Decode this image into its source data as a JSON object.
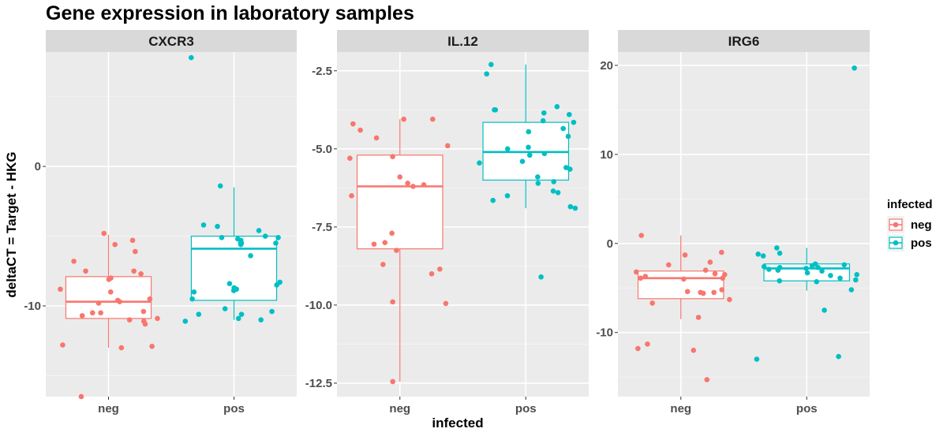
{
  "chart_data": {
    "type": "box",
    "title": "Gene expression in laboratory samples",
    "xlabel": "infected",
    "ylabel": "deltaCT = Target - HKG",
    "categories": [
      "neg",
      "pos"
    ],
    "legend": {
      "title": "infected",
      "position": "right",
      "entries": [
        {
          "name": "neg",
          "color": "#F8766D"
        },
        {
          "name": "pos",
          "color": "#00BFC4"
        }
      ]
    },
    "panels": [
      {
        "strip": "CXCR3",
        "ylim": [
          -16.5,
          8.2
        ],
        "yticks": [
          -10,
          0
        ],
        "ytick_labels": [
          "-10",
          "0"
        ],
        "boxes": [
          {
            "group": "neg",
            "lower_whisker": -13.0,
            "q1": -10.9,
            "median": -9.7,
            "q3": -7.9,
            "upper_whisker": -4.9
          },
          {
            "group": "pos",
            "lower_whisker": -11.0,
            "q1": -9.6,
            "median": -5.9,
            "q3": -5.0,
            "upper_whisker": -1.5
          }
        ],
        "points": {
          "neg": [
            -5.3,
            -5.6,
            -4.8,
            -7.5,
            -7.7,
            -7.5,
            -8.1,
            -8.0,
            -9.0,
            -8.8,
            -9.6,
            -9.7,
            -9.8,
            -10.4,
            -10.5,
            -10.5,
            -10.7,
            -10.9,
            -11.0,
            -11.3,
            -11.1,
            -12.8,
            -13.0,
            -12.9,
            -16.5,
            -6.1,
            -6.8,
            -9.5
          ],
          "pos": [
            7.8,
            -1.4,
            -4.3,
            -5.1,
            -5.2,
            -5.3,
            -5.5,
            -5.5,
            -5.6,
            -5.1,
            -5.5,
            -5.0,
            -4.2,
            -4.6,
            -6.4,
            -8.3,
            -8.4,
            -8.5,
            -8.7,
            -8.8,
            -8.9,
            -9.0,
            -9.5,
            -10.2,
            -10.4,
            -10.6,
            -10.6,
            -10.9,
            -11.0,
            -11.1
          ]
        }
      },
      {
        "strip": "IL.12",
        "ylim": [
          -12.5,
          -2.3
        ],
        "yticks": [
          -12.5,
          -10.0,
          -7.5,
          -5.0,
          -2.5
        ],
        "ytick_labels": [
          "-12.5",
          "-10.0",
          "-7.5",
          "-5.0",
          "-2.5"
        ],
        "boxes": [
          {
            "group": "neg",
            "lower_whisker": -12.45,
            "q1": -8.2,
            "median": -6.2,
            "q3": -5.2,
            "upper_whisker": -4.05
          },
          {
            "group": "pos",
            "lower_whisker": -6.9,
            "q1": -6.0,
            "median": -5.1,
            "q3": -4.15,
            "upper_whisker": -2.3
          }
        ],
        "points": {
          "neg": [
            -4.05,
            -4.05,
            -4.2,
            -4.4,
            -4.65,
            -4.9,
            -5.25,
            -5.3,
            -5.9,
            -6.1,
            -6.15,
            -6.2,
            -6.5,
            -7.7,
            -8.0,
            -8.05,
            -8.25,
            -8.7,
            -8.85,
            -9.0,
            -9.9,
            -9.95,
            -12.45
          ],
          "pos": [
            -2.3,
            -2.6,
            -3.65,
            -3.75,
            -3.75,
            -3.85,
            -3.9,
            -4.1,
            -4.15,
            -4.35,
            -4.45,
            -4.6,
            -4.95,
            -5.0,
            -5.15,
            -5.2,
            -5.4,
            -5.45,
            -5.6,
            -5.65,
            -5.9,
            -6.05,
            -6.1,
            -6.35,
            -6.4,
            -6.5,
            -6.65,
            -6.85,
            -6.9,
            -9.1
          ]
        }
      },
      {
        "strip": "IRG6",
        "ylim": [
          -16.5,
          21.2
        ],
        "yticks": [
          -10,
          0,
          10,
          20
        ],
        "ytick_labels": [
          "-10",
          "0",
          "10",
          "20"
        ],
        "boxes": [
          {
            "group": "neg",
            "lower_whisker": -8.5,
            "q1": -6.2,
            "median": -3.9,
            "q3": -3.1,
            "upper_whisker": 0.9
          },
          {
            "group": "pos",
            "lower_whisker": -5.3,
            "q1": -4.2,
            "median": -2.8,
            "q3": -2.3,
            "upper_whisker": -0.5
          }
        ],
        "points": {
          "neg": [
            0.9,
            -1.0,
            -1.3,
            -2.1,
            -2.4,
            -3.0,
            -3.2,
            -3.4,
            -3.5,
            -3.7,
            -3.9,
            -3.9,
            -4.0,
            -5.2,
            -5.4,
            -5.5,
            -5.5,
            -5.6,
            -6.3,
            -6.7,
            -8.3,
            -11.3,
            -11.8,
            -12.0,
            -15.3
          ],
          "pos": [
            19.7,
            -0.5,
            -1.1,
            -1.2,
            -1.4,
            -2.3,
            -2.4,
            -2.5,
            -2.6,
            -2.7,
            -2.7,
            -2.8,
            -2.9,
            -3.0,
            -3.1,
            -3.3,
            -3.5,
            -3.6,
            -3.9,
            -4.1,
            -4.2,
            -4.3,
            -5.2,
            -7.5,
            -12.7,
            -13.0
          ]
        }
      }
    ]
  }
}
